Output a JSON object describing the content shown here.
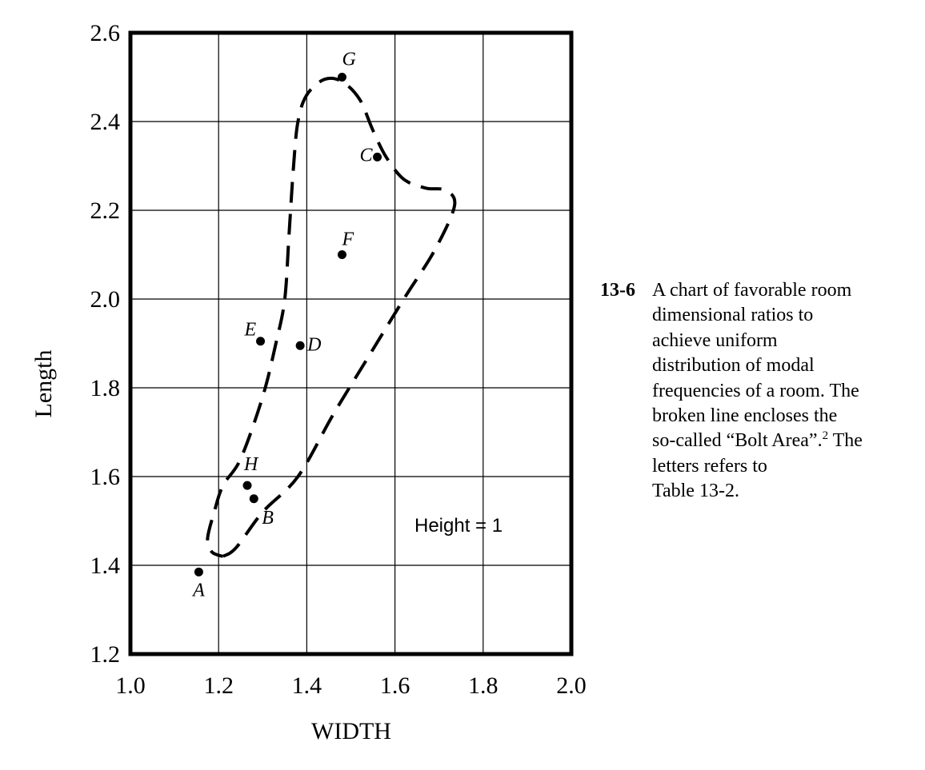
{
  "chart_data": {
    "type": "scatter",
    "xlabel": "WIDTH",
    "ylabel": "Length",
    "xlim": [
      1.0,
      2.0
    ],
    "ylim": [
      1.2,
      2.6
    ],
    "x_ticks": [
      "1.0",
      "1.2",
      "1.4",
      "1.6",
      "1.8",
      "2.0"
    ],
    "y_ticks": [
      "1.2",
      "1.4",
      "1.6",
      "1.8",
      "2.0",
      "2.2",
      "2.4",
      "2.6"
    ],
    "grid": true,
    "annotation": "Height = 1",
    "points": [
      {
        "label": "A",
        "x": 1.155,
        "y": 1.385
      },
      {
        "label": "B",
        "x": 1.28,
        "y": 1.55
      },
      {
        "label": "C",
        "x": 1.56,
        "y": 2.32
      },
      {
        "label": "D",
        "x": 1.385,
        "y": 1.895
      },
      {
        "label": "E",
        "x": 1.295,
        "y": 1.905
      },
      {
        "label": "F",
        "x": 1.48,
        "y": 2.1
      },
      {
        "label": "G",
        "x": 1.48,
        "y": 2.5
      },
      {
        "label": "H",
        "x": 1.265,
        "y": 1.58
      }
    ],
    "region": {
      "name": "Bolt Area",
      "boundary": [
        [
          1.21,
          1.42
        ],
        [
          1.24,
          1.44
        ],
        [
          1.3,
          1.52
        ],
        [
          1.38,
          1.6
        ],
        [
          1.46,
          1.74
        ],
        [
          1.54,
          1.87
        ],
        [
          1.62,
          2.0
        ],
        [
          1.69,
          2.11
        ],
        [
          1.735,
          2.21
        ],
        [
          1.715,
          2.245
        ],
        [
          1.67,
          2.25
        ],
        [
          1.62,
          2.27
        ],
        [
          1.58,
          2.32
        ],
        [
          1.55,
          2.38
        ],
        [
          1.52,
          2.45
        ],
        [
          1.48,
          2.49
        ],
        [
          1.44,
          2.495
        ],
        [
          1.4,
          2.46
        ],
        [
          1.38,
          2.4
        ],
        [
          1.37,
          2.3
        ],
        [
          1.36,
          2.15
        ],
        [
          1.35,
          2.0
        ],
        [
          1.33,
          1.9
        ],
        [
          1.3,
          1.78
        ],
        [
          1.25,
          1.64
        ],
        [
          1.21,
          1.58
        ],
        [
          1.19,
          1.52
        ],
        [
          1.175,
          1.46
        ],
        [
          1.185,
          1.43
        ],
        [
          1.21,
          1.42
        ]
      ]
    }
  },
  "caption": {
    "number": "13-6",
    "lines": [
      "A chart of favorable room",
      "dimensional ratios to",
      "achieve uniform",
      "distribution of modal",
      "frequencies of a room. The",
      "broken line encloses the"
    ],
    "line7_before": "so-called “Bolt Area”.",
    "footnote": "2",
    "line7_after": " The",
    "line8": "letters refers to",
    "line9": "Table 13-2."
  }
}
